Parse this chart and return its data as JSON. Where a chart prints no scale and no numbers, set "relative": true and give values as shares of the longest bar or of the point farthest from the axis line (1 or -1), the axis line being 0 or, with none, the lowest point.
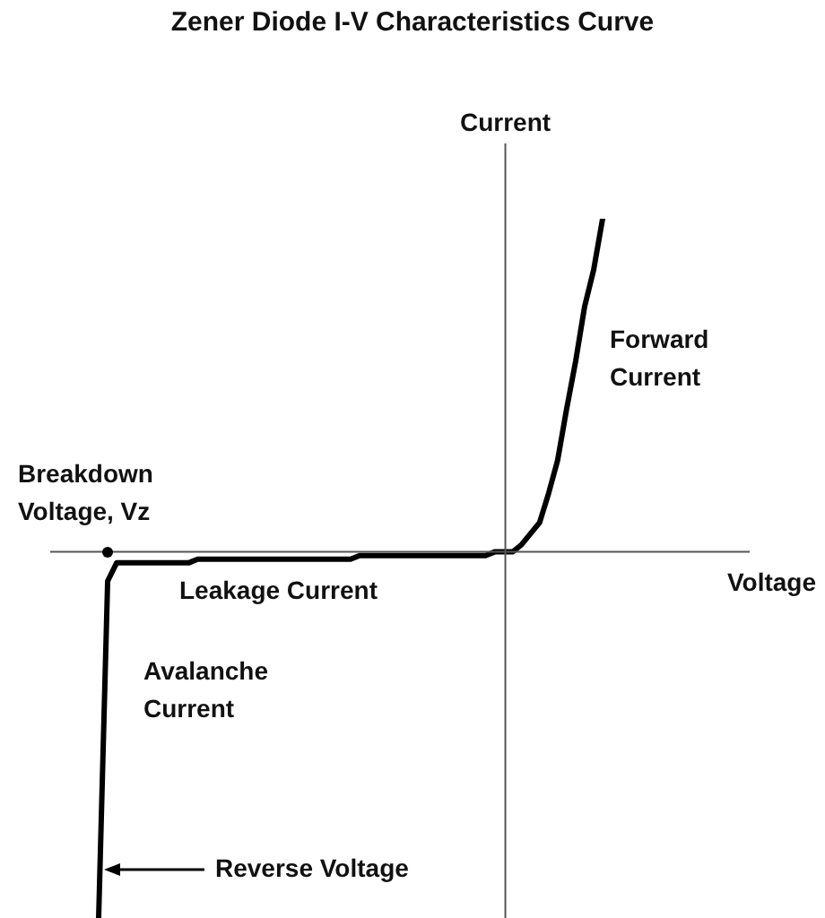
{
  "chart_data": {
    "type": "line",
    "title": "Zener Diode I-V Characteristics Curve",
    "xlabel": "Voltage",
    "ylabel": "Current",
    "relative": true,
    "categories": [
      null,
      null,
      null,
      null,
      null,
      null,
      null,
      null,
      null,
      null,
      null,
      null,
      null,
      null,
      null,
      null,
      null,
      null,
      null,
      null,
      null,
      null,
      null,
      null,
      null,
      null,
      null,
      null,
      null,
      null,
      null,
      null,
      null,
      null,
      null,
      null,
      null,
      null,
      null,
      null,
      null,
      null,
      null,
      null,
      null,
      null,
      null,
      null,
      null,
      null,
      null,
      null,
      null,
      null,
      null,
      null,
      null
    ],
    "series": [
      {
        "color": "#000000",
        "values": [
          -1,
          -0.08,
          -0.03,
          -0.03,
          -0.03,
          -0.03,
          -0.03,
          -0.03,
          -0.03,
          -0.03,
          -0.03,
          -0.02,
          -0.02,
          -0.02,
          -0.02,
          -0.02,
          -0.02,
          -0.02,
          -0.02,
          -0.02,
          -0.02,
          -0.02,
          -0.02,
          -0.02,
          -0.02,
          -0.02,
          -0.02,
          -0.02,
          -0.02,
          -0.01,
          -0.01,
          -0.01,
          -0.01,
          -0.01,
          -0.01,
          -0.01,
          -0.01,
          -0.01,
          -0.01,
          -0.01,
          -0.01,
          -0.01,
          -0.01,
          -0.01,
          0,
          0,
          0,
          0.02,
          0.05,
          0.08,
          0.16,
          0.25,
          0.39,
          0.52,
          0.67,
          0.77,
          0.91
        ]
      }
    ],
    "annotations": [
      "Breakdown Voltage, Vz",
      "Forward Current",
      "Leakage Current",
      "Avalanche Current",
      "Reverse Voltage"
    ]
  }
}
